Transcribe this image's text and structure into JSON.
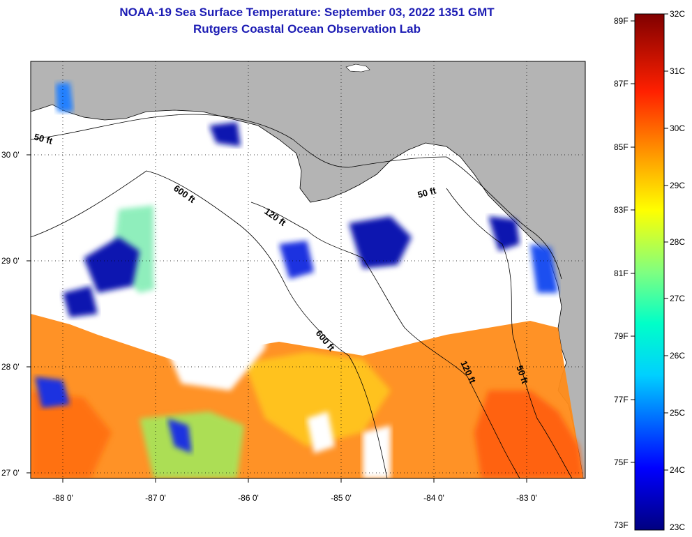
{
  "title": "NOAA-19 Sea Surface Temperature:  September 03, 2022 1351 GMT",
  "subtitle": "Rutgers Coastal Ocean Observation Lab",
  "lat_ticks": [
    "30 0'",
    "29 0'",
    "28 0'",
    "27 0'"
  ],
  "lon_ticks": [
    "-88 0'",
    "-87 0'",
    "-86 0'",
    "-85 0'",
    "-84 0'",
    "-83 0'"
  ],
  "contours": [
    "50 ft",
    "600 ft",
    "120 ft",
    "50 ft",
    "600 ft",
    "120 ft",
    "50 ft"
  ],
  "colorbar": {
    "fahrenheit": [
      "89F",
      "87F",
      "85F",
      "83F",
      "81F",
      "79F",
      "77F",
      "75F",
      "73F"
    ],
    "celsius": [
      "32C",
      "31C",
      "30C",
      "29C",
      "28C",
      "27C",
      "26C",
      "25C",
      "24C",
      "23C"
    ]
  },
  "colors": {
    "title": "#1c1cb4",
    "land": "#b4b4b4",
    "cloud": "#ffffff"
  }
}
